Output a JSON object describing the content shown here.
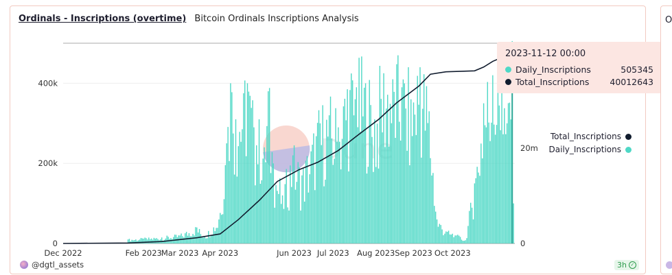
{
  "header": {
    "title": "Ordinals - Inscriptions (overtime)",
    "subtitle": "Bitcoin Ordinals Inscriptions Analysis"
  },
  "side_card": {
    "title": "O"
  },
  "footer": {
    "author": "@dgtl_assets",
    "age": "3h"
  },
  "tooltip": {
    "timestamp": "2023-11-12 00:00",
    "rows": [
      {
        "name": "Daily_Inscriptions",
        "value": "505345",
        "color": "#4fd8c6"
      },
      {
        "name": "Total_Inscriptions",
        "value": "40012643",
        "color": "#111c2e"
      }
    ]
  },
  "legend": [
    {
      "name": "Total_Inscriptions",
      "color": "#111c2e"
    },
    {
      "name": "Daily_Inscriptions",
      "color": "#4fd8c6"
    }
  ],
  "watermark": "Dune",
  "chart_data": {
    "type": "bar",
    "x_tick_labels": [
      "Dec 2022",
      "Feb 2023",
      "Mar 2023",
      "Apr 2023",
      "Jun 2023",
      "Jul 2023",
      "Aug 2023",
      "Sep 2023",
      "Oct 2023"
    ],
    "y_left_ticks": [
      "0",
      "200k",
      "400k"
    ],
    "y_right_ticks": [
      "0",
      "20m"
    ],
    "y_left_range": [
      0,
      500000
    ],
    "y_right_range": [
      0,
      42000000
    ],
    "x_range": [
      "2022-12-01",
      "2023-11-14"
    ],
    "series": [
      {
        "name": "Daily_Inscriptions",
        "type": "bar",
        "axis": "left",
        "color": "#4fd8c6",
        "points": [
          [
            "2023-01-20",
            10000
          ],
          [
            "2023-02-01",
            12000
          ],
          [
            "2023-02-15",
            15000
          ],
          [
            "2023-03-01",
            20000
          ],
          [
            "2023-03-14",
            40000
          ],
          [
            "2023-03-20",
            18000
          ],
          [
            "2023-03-31",
            60000
          ],
          [
            "2023-04-06",
            250000
          ],
          [
            "2023-04-09",
            400000
          ],
          [
            "2023-04-13",
            310000
          ],
          [
            "2023-04-19",
            375000
          ],
          [
            "2023-04-22",
            400000
          ],
          [
            "2023-04-27",
            290000
          ],
          [
            "2023-05-01",
            310000
          ],
          [
            "2023-05-05",
            240000
          ],
          [
            "2023-05-08",
            380000
          ],
          [
            "2023-05-12",
            200000
          ],
          [
            "2023-05-19",
            120000
          ],
          [
            "2023-05-27",
            220000
          ],
          [
            "2023-06-03",
            170000
          ],
          [
            "2023-06-10",
            230000
          ],
          [
            "2023-06-17",
            300000
          ],
          [
            "2023-06-24",
            320000
          ],
          [
            "2023-07-01",
            290000
          ],
          [
            "2023-07-08",
            385000
          ],
          [
            "2023-07-15",
            390000
          ],
          [
            "2023-07-22",
            400000
          ],
          [
            "2023-07-29",
            310000
          ],
          [
            "2023-08-05",
            425000
          ],
          [
            "2023-08-12",
            410000
          ],
          [
            "2023-08-19",
            390000
          ],
          [
            "2023-08-26",
            360000
          ],
          [
            "2023-09-02",
            440000
          ],
          [
            "2023-09-09",
            330000
          ],
          [
            "2023-09-15",
            60000
          ],
          [
            "2023-09-22",
            30000
          ],
          [
            "2023-09-30",
            20000
          ],
          [
            "2023-10-07",
            8000
          ],
          [
            "2023-10-14",
            150000
          ],
          [
            "2023-10-21",
            350000
          ],
          [
            "2023-10-28",
            420000
          ],
          [
            "2023-11-04",
            400000
          ],
          [
            "2023-11-08",
            300000
          ],
          [
            "2023-11-12",
            505345
          ],
          [
            "2023-11-13",
            100000
          ]
        ]
      },
      {
        "name": "Total_Inscriptions",
        "type": "line",
        "axis": "right",
        "color": "#111c2e",
        "points": [
          [
            "2022-12-01",
            0
          ],
          [
            "2023-01-20",
            100000
          ],
          [
            "2023-02-15",
            400000
          ],
          [
            "2023-03-14",
            1200000
          ],
          [
            "2023-04-01",
            2000000
          ],
          [
            "2023-04-15",
            5000000
          ],
          [
            "2023-05-01",
            9000000
          ],
          [
            "2023-05-15",
            13000000
          ],
          [
            "2023-06-01",
            15500000
          ],
          [
            "2023-06-15",
            17000000
          ],
          [
            "2023-07-01",
            19500000
          ],
          [
            "2023-07-15",
            22500000
          ],
          [
            "2023-08-01",
            26000000
          ],
          [
            "2023-08-15",
            29500000
          ],
          [
            "2023-09-01",
            33000000
          ],
          [
            "2023-09-10",
            35500000
          ],
          [
            "2023-09-22",
            36000000
          ],
          [
            "2023-10-14",
            36200000
          ],
          [
            "2023-10-21",
            37000000
          ],
          [
            "2023-10-28",
            38200000
          ],
          [
            "2023-11-04",
            39000000
          ],
          [
            "2023-11-12",
            40012643
          ],
          [
            "2023-11-14",
            41000000
          ]
        ]
      }
    ],
    "grid": true,
    "legend_position": "right"
  }
}
